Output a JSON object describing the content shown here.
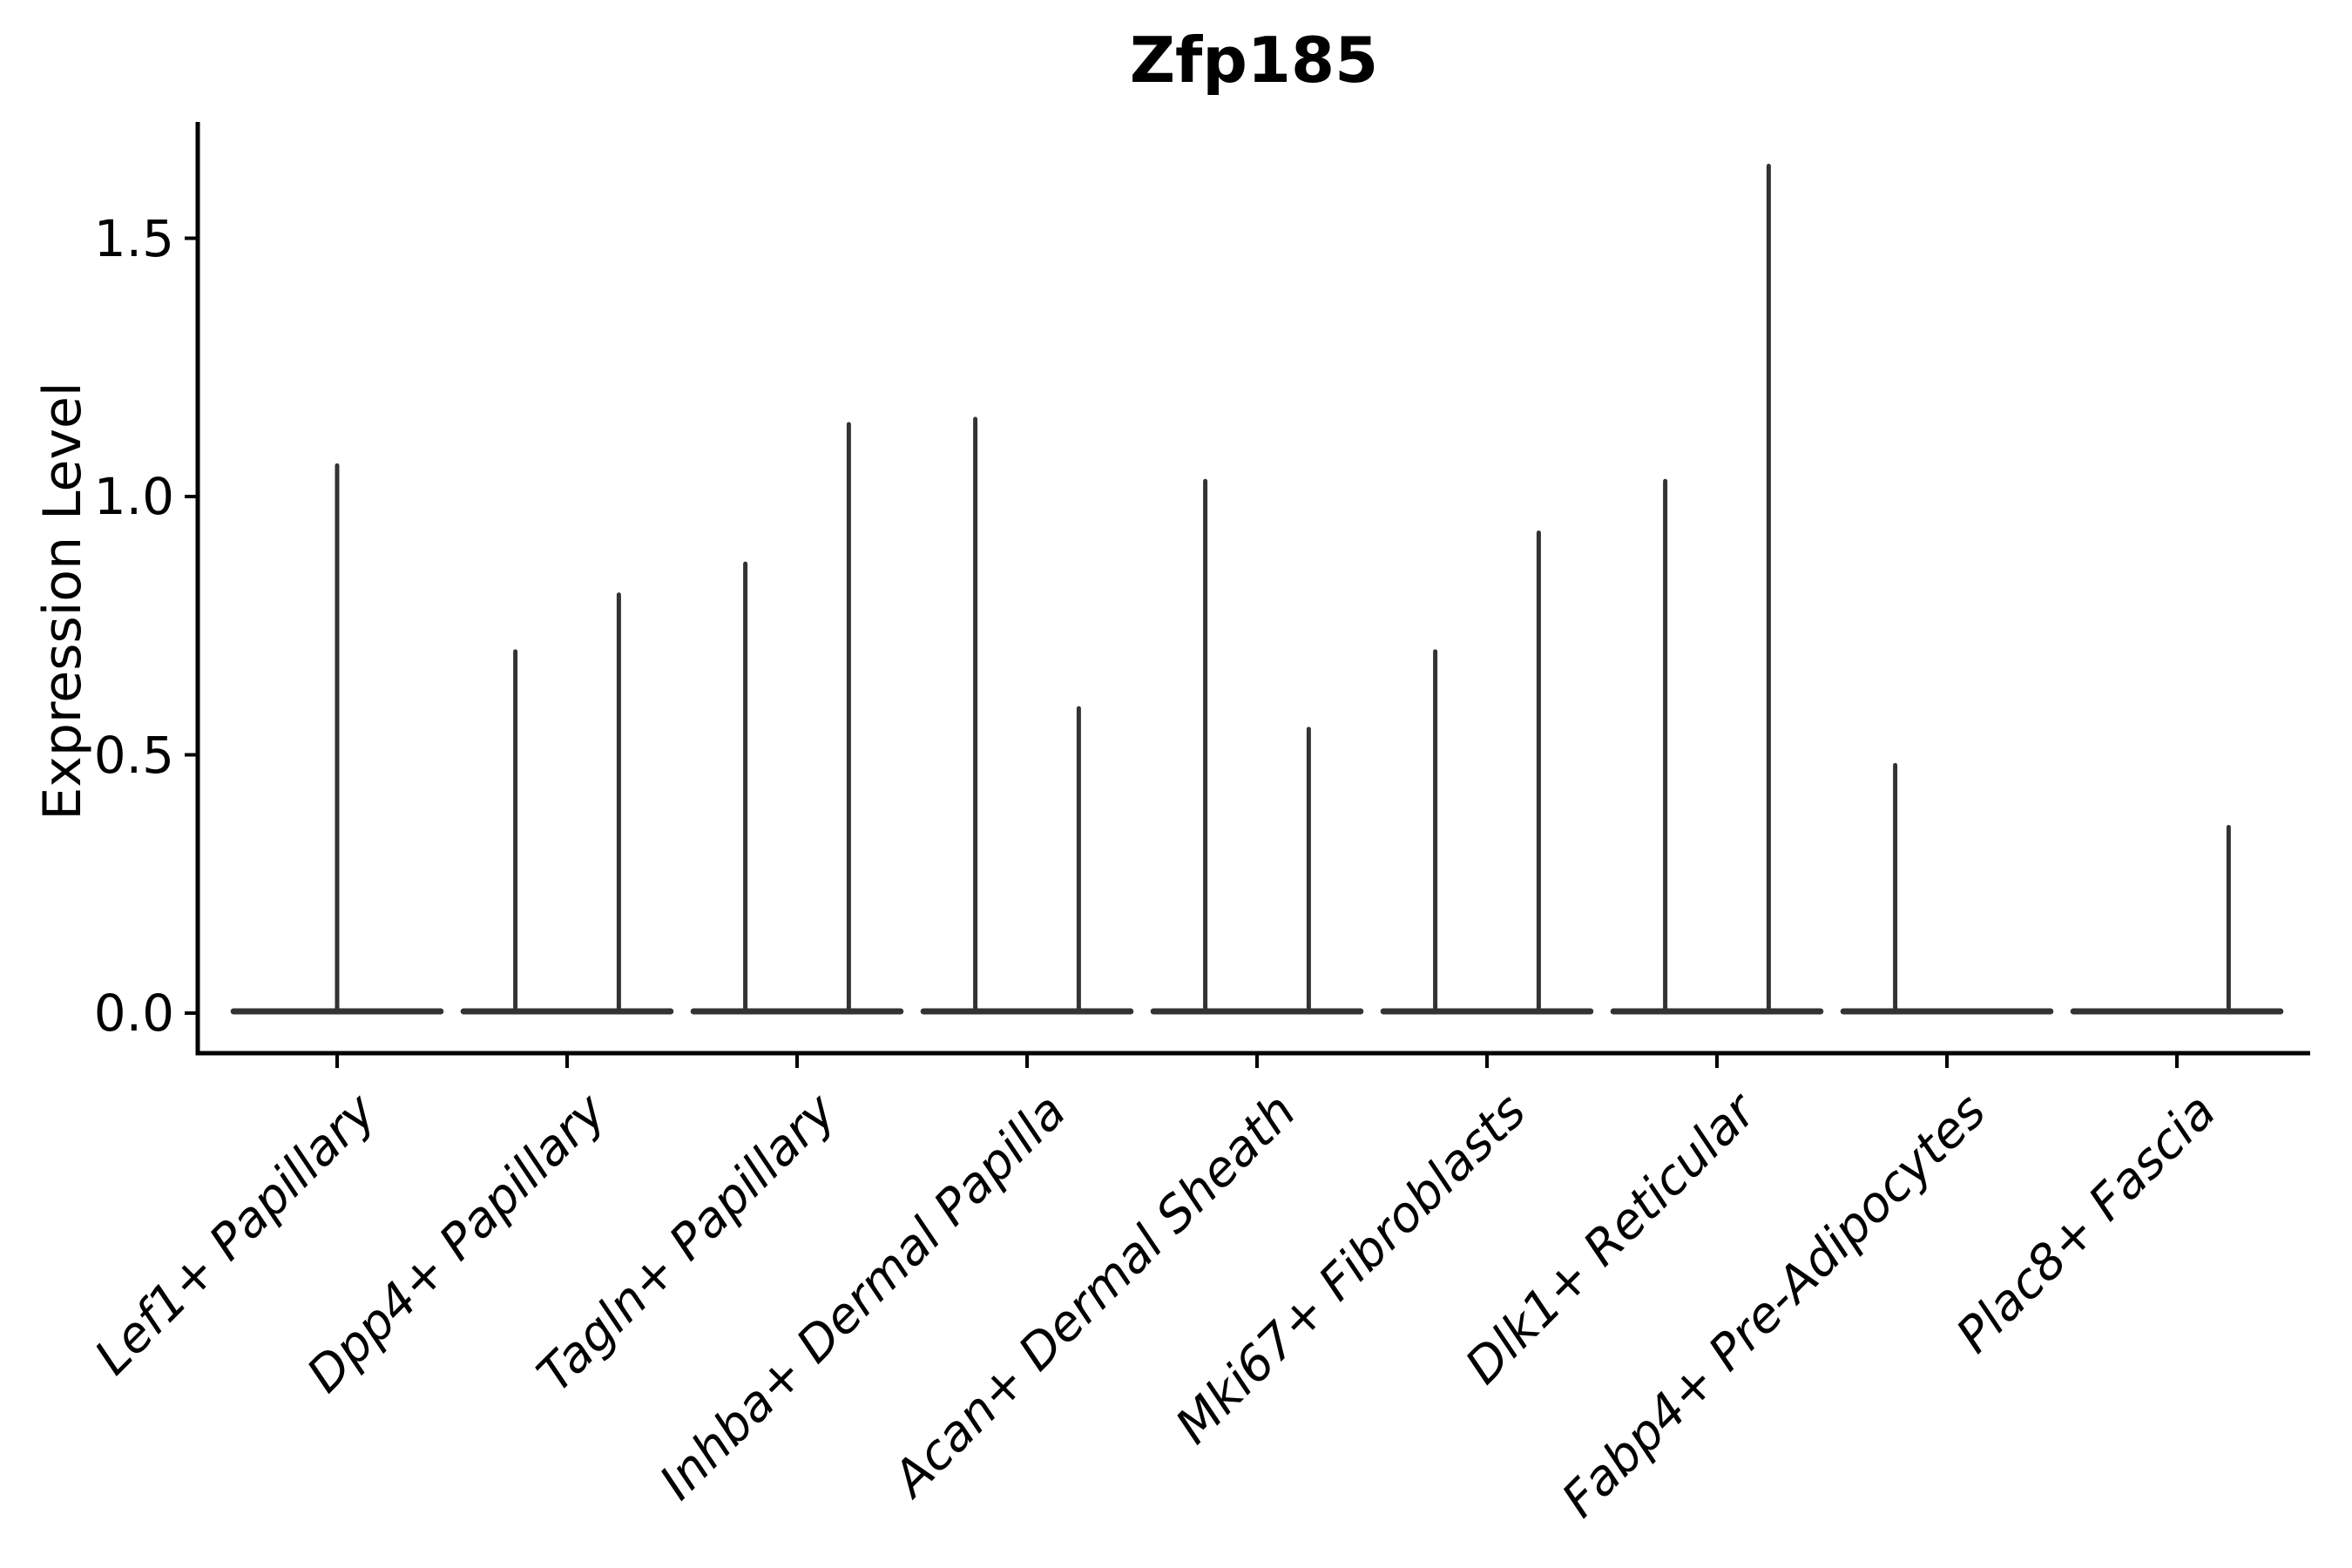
{
  "chart_data": {
    "type": "violin",
    "title": "Zfp185",
    "ylabel": "Expression Level",
    "xlabel": "",
    "grid": false,
    "legend": "none",
    "ylim": [
      -0.08,
      1.73
    ],
    "yticks": [
      {
        "label": "0.0",
        "value": 0.0
      },
      {
        "label": "0.5",
        "value": 0.5
      },
      {
        "label": "1.0",
        "value": 1.0
      },
      {
        "label": "1.5",
        "value": 1.5
      }
    ],
    "categories": [
      "Lef1+ Papillary",
      "Dpp4+ Papillary",
      "Tagln+ Papillary",
      "Inhba+ Dermal Papilla",
      "Acan+ Dermal Sheath",
      "Mki67+ Fibroblasts",
      "Dlk1+ Reticular",
      "Fabp4+ Pre-Adipocytes",
      "Plac8+ Fascia"
    ],
    "baseline_value": 0.0,
    "base_width_fraction": 0.9,
    "dodge_offset_fraction": 0.225,
    "violins": [
      {
        "category": "Lef1+ Papillary",
        "spikes": [
          {
            "position": "center",
            "max": 1.06
          }
        ]
      },
      {
        "category": "Dpp4+ Papillary",
        "spikes": [
          {
            "position": "left",
            "max": 0.7
          },
          {
            "position": "right",
            "max": 0.81
          }
        ]
      },
      {
        "category": "Tagln+ Papillary",
        "spikes": [
          {
            "position": "left",
            "max": 0.87
          },
          {
            "position": "right",
            "max": 1.14
          }
        ]
      },
      {
        "category": "Inhba+ Dermal Papilla",
        "spikes": [
          {
            "position": "left",
            "max": 1.15
          },
          {
            "position": "right",
            "max": 0.59
          }
        ]
      },
      {
        "category": "Acan+ Dermal Sheath",
        "spikes": [
          {
            "position": "left",
            "max": 1.03
          },
          {
            "position": "right",
            "max": 0.55
          }
        ]
      },
      {
        "category": "Mki67+ Fibroblasts",
        "spikes": [
          {
            "position": "left",
            "max": 0.7
          },
          {
            "position": "right",
            "max": 0.93
          }
        ]
      },
      {
        "category": "Dlk1+ Reticular",
        "spikes": [
          {
            "position": "left",
            "max": 1.03
          },
          {
            "position": "right",
            "max": 1.64
          }
        ]
      },
      {
        "category": "Fabp4+ Pre-Adipocytes",
        "spikes": [
          {
            "position": "left",
            "max": 0.48
          }
        ]
      },
      {
        "category": "Plac8+ Fascia",
        "spikes": [
          {
            "position": "right",
            "max": 0.36
          }
        ]
      }
    ],
    "colors": {
      "violin": "#333333",
      "axis": "#000000",
      "text": "#000000",
      "background": "#ffffff"
    }
  }
}
